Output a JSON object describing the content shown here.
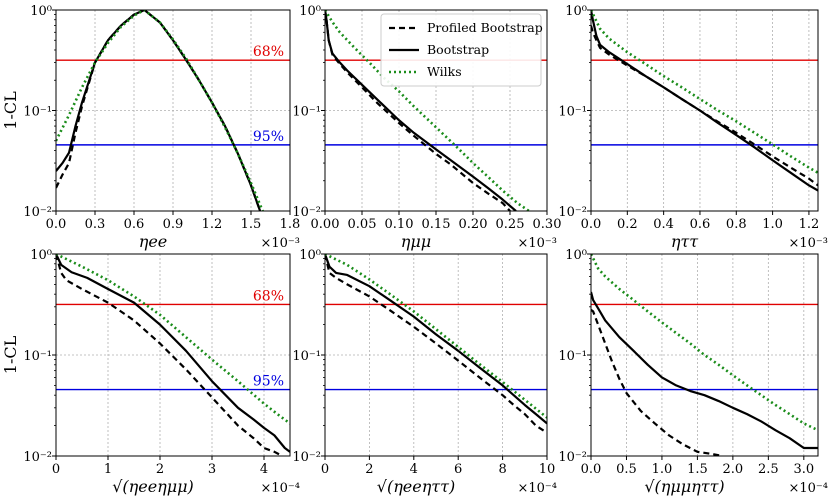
{
  "figure": {
    "ylabel": "1-CL",
    "legend": [
      {
        "label": "Profiled Bootstrap",
        "style": "dashed",
        "color": "#000000"
      },
      {
        "label": "Bootstrap",
        "style": "solid",
        "color": "#000000"
      },
      {
        "label": "Wilks",
        "style": "dotted",
        "color": "#1a8c1a"
      }
    ],
    "ref_lines": [
      {
        "label": "68%",
        "value": 0.317,
        "color": "#e00000"
      },
      {
        "label": "95%",
        "value": 0.0455,
        "color": "#0000e0"
      }
    ],
    "y_ticks": [
      "10⁻²",
      "10⁻¹",
      "10⁰"
    ],
    "grid": true,
    "yscale": "log",
    "ylim": [
      0.01,
      1.0
    ]
  },
  "chart_data": [
    {
      "type": "line",
      "xlabel": "ηee",
      "multiplier": "×10⁻³",
      "xlim": [
        0.0,
        1.8
      ],
      "xticks": [
        0.0,
        0.3,
        0.6,
        0.9,
        1.2,
        1.5,
        1.8
      ],
      "xtick_labels": [
        "0.0",
        "0.3",
        "0.6",
        "0.9",
        "1.2",
        "1.5",
        "1.8"
      ],
      "show_ref_labels": true,
      "series": [
        {
          "name": "Profiled Bootstrap",
          "x": [
            0.0,
            0.05,
            0.1,
            0.15,
            0.2,
            0.3,
            0.4,
            0.5,
            0.6,
            0.68,
            0.8,
            0.9,
            1.0,
            1.1,
            1.2,
            1.3,
            1.4,
            1.5,
            1.57
          ],
          "y": [
            0.017,
            0.023,
            0.03,
            0.06,
            0.11,
            0.3,
            0.5,
            0.7,
            0.9,
            1.0,
            0.75,
            0.5,
            0.32,
            0.2,
            0.12,
            0.07,
            0.037,
            0.018,
            0.01
          ]
        },
        {
          "name": "Bootstrap",
          "x": [
            0.0,
            0.05,
            0.1,
            0.15,
            0.2,
            0.3,
            0.4,
            0.5,
            0.6,
            0.68,
            0.8,
            0.9,
            1.0,
            1.1,
            1.2,
            1.3,
            1.4,
            1.5,
            1.57
          ],
          "y": [
            0.025,
            0.03,
            0.038,
            0.07,
            0.12,
            0.3,
            0.5,
            0.7,
            0.9,
            1.0,
            0.75,
            0.5,
            0.32,
            0.2,
            0.12,
            0.07,
            0.037,
            0.018,
            0.01
          ]
        },
        {
          "name": "Wilks",
          "x": [
            0.0,
            0.1,
            0.2,
            0.3,
            0.4,
            0.5,
            0.6,
            0.68,
            0.8,
            0.9,
            1.0,
            1.1,
            1.2,
            1.3,
            1.4,
            1.5,
            1.59
          ],
          "y": [
            0.05,
            0.09,
            0.17,
            0.3,
            0.47,
            0.68,
            0.88,
            1.0,
            0.75,
            0.51,
            0.33,
            0.2,
            0.12,
            0.068,
            0.037,
            0.019,
            0.01
          ]
        }
      ]
    },
    {
      "type": "line",
      "xlabel": "ημμ",
      "multiplier": "×10⁻³",
      "xlim": [
        0.0,
        0.3
      ],
      "xticks": [
        0.0,
        0.05,
        0.1,
        0.15,
        0.2,
        0.25,
        0.3
      ],
      "xtick_labels": [
        "0.00",
        "0.05",
        "0.10",
        "0.15",
        "0.20",
        "0.25",
        "0.30"
      ],
      "show_ref_labels": false,
      "series": [
        {
          "name": "Profiled Bootstrap",
          "x": [
            0.0,
            0.002,
            0.005,
            0.01,
            0.02,
            0.03,
            0.05,
            0.07,
            0.1,
            0.12,
            0.15,
            0.17,
            0.2,
            0.22,
            0.24,
            0.25
          ],
          "y": [
            1.0,
            0.8,
            0.5,
            0.36,
            0.29,
            0.24,
            0.17,
            0.12,
            0.075,
            0.056,
            0.037,
            0.029,
            0.019,
            0.015,
            0.012,
            0.01
          ]
        },
        {
          "name": "Bootstrap",
          "x": [
            0.0,
            0.002,
            0.005,
            0.01,
            0.02,
            0.03,
            0.05,
            0.07,
            0.1,
            0.12,
            0.15,
            0.17,
            0.2,
            0.22,
            0.24,
            0.258
          ],
          "y": [
            1.0,
            0.8,
            0.5,
            0.37,
            0.3,
            0.25,
            0.18,
            0.13,
            0.08,
            0.06,
            0.041,
            0.032,
            0.022,
            0.017,
            0.013,
            0.01
          ]
        },
        {
          "name": "Wilks",
          "x": [
            0.0,
            0.01,
            0.02,
            0.04,
            0.06,
            0.08,
            0.1,
            0.12,
            0.14,
            0.16,
            0.18,
            0.2,
            0.22,
            0.24,
            0.26,
            0.28
          ],
          "y": [
            1.0,
            0.76,
            0.6,
            0.42,
            0.3,
            0.21,
            0.155,
            0.11,
            0.08,
            0.058,
            0.042,
            0.03,
            0.022,
            0.016,
            0.012,
            0.0095
          ]
        }
      ]
    },
    {
      "type": "line",
      "xlabel": "ηττ",
      "multiplier": "×10⁻³",
      "xlim": [
        0.0,
        1.25
      ],
      "xticks": [
        0.0,
        0.2,
        0.4,
        0.6,
        0.8,
        1.0,
        1.2
      ],
      "xtick_labels": [
        "0.0",
        "0.2",
        "0.4",
        "0.6",
        "0.8",
        "1.0",
        "1.2"
      ],
      "show_ref_labels": false,
      "series": [
        {
          "name": "Profiled Bootstrap",
          "x": [
            0.0,
            0.01,
            0.03,
            0.05,
            0.1,
            0.2,
            0.3,
            0.4,
            0.5,
            0.6,
            0.7,
            0.8,
            0.9,
            1.0,
            1.1,
            1.2,
            1.25
          ],
          "y": [
            0.7,
            0.6,
            0.5,
            0.42,
            0.36,
            0.28,
            0.22,
            0.17,
            0.13,
            0.1,
            0.077,
            0.06,
            0.046,
            0.035,
            0.027,
            0.021,
            0.018
          ]
        },
        {
          "name": "Bootstrap",
          "x": [
            0.0,
            0.01,
            0.03,
            0.05,
            0.1,
            0.2,
            0.3,
            0.4,
            0.5,
            0.6,
            0.7,
            0.8,
            0.9,
            1.0,
            1.1,
            1.2,
            1.25
          ],
          "y": [
            1.0,
            0.8,
            0.55,
            0.45,
            0.38,
            0.29,
            0.22,
            0.17,
            0.13,
            0.1,
            0.075,
            0.057,
            0.043,
            0.032,
            0.024,
            0.018,
            0.016
          ]
        },
        {
          "name": "Wilks",
          "x": [
            0.0,
            0.05,
            0.1,
            0.2,
            0.3,
            0.4,
            0.5,
            0.6,
            0.7,
            0.8,
            0.9,
            1.0,
            1.1,
            1.2,
            1.25
          ],
          "y": [
            1.0,
            0.65,
            0.52,
            0.38,
            0.29,
            0.22,
            0.17,
            0.13,
            0.1,
            0.078,
            0.06,
            0.046,
            0.035,
            0.027,
            0.024
          ]
        }
      ]
    },
    {
      "type": "line",
      "xlabel": "√(ηeeημμ)",
      "multiplier": "×10⁻⁴",
      "xlim": [
        0.0,
        4.5
      ],
      "xticks": [
        0,
        1,
        2,
        3,
        4
      ],
      "xtick_labels": [
        "0",
        "1",
        "2",
        "3",
        "4"
      ],
      "show_ref_labels": true,
      "series": [
        {
          "name": "Profiled Bootstrap",
          "x": [
            0.0,
            0.1,
            0.2,
            0.5,
            1.0,
            1.5,
            2.0,
            2.5,
            3.0,
            3.5,
            3.8,
            4.0,
            4.2,
            4.35
          ],
          "y": [
            1.0,
            0.65,
            0.55,
            0.45,
            0.33,
            0.22,
            0.13,
            0.072,
            0.038,
            0.02,
            0.015,
            0.012,
            0.011,
            0.01
          ]
        },
        {
          "name": "Bootstrap",
          "x": [
            0.0,
            0.1,
            0.3,
            0.6,
            1.0,
            1.5,
            2.0,
            2.5,
            3.0,
            3.5,
            3.8,
            4.0,
            4.2,
            4.4,
            4.5
          ],
          "y": [
            1.0,
            0.78,
            0.66,
            0.58,
            0.45,
            0.33,
            0.2,
            0.11,
            0.055,
            0.03,
            0.023,
            0.019,
            0.016,
            0.012,
            0.011
          ]
        },
        {
          "name": "Wilks",
          "x": [
            0.0,
            0.5,
            1.0,
            1.5,
            2.0,
            2.5,
            3.0,
            3.5,
            4.0,
            4.3,
            4.5
          ],
          "y": [
            1.0,
            0.75,
            0.55,
            0.38,
            0.25,
            0.15,
            0.09,
            0.055,
            0.033,
            0.025,
            0.021
          ]
        }
      ]
    },
    {
      "type": "line",
      "xlabel": "√(ηeeηττ)",
      "multiplier": "×10⁻⁴",
      "xlim": [
        0.0,
        10.0
      ],
      "xticks": [
        0,
        2,
        4,
        6,
        8,
        10
      ],
      "xtick_labels": [
        "0",
        "2",
        "4",
        "6",
        "8",
        "10"
      ],
      "show_ref_labels": false,
      "series": [
        {
          "name": "Profiled Bootstrap",
          "x": [
            0.0,
            0.2,
            0.5,
            1.0,
            2.0,
            3.0,
            4.0,
            5.0,
            6.0,
            7.0,
            8.0,
            8.5,
            9.0,
            9.5,
            10.0
          ],
          "y": [
            1.0,
            0.65,
            0.58,
            0.5,
            0.38,
            0.27,
            0.19,
            0.13,
            0.088,
            0.059,
            0.04,
            0.032,
            0.026,
            0.02,
            0.017
          ]
        },
        {
          "name": "Bootstrap",
          "x": [
            0.0,
            0.2,
            0.5,
            1.0,
            2.0,
            3.0,
            4.0,
            5.0,
            6.0,
            7.0,
            8.0,
            8.5,
            9.0,
            9.5,
            10.0
          ],
          "y": [
            1.0,
            0.75,
            0.65,
            0.62,
            0.48,
            0.34,
            0.24,
            0.16,
            0.11,
            0.074,
            0.05,
            0.04,
            0.032,
            0.026,
            0.021
          ]
        },
        {
          "name": "Wilks",
          "x": [
            0.0,
            1.0,
            2.0,
            3.0,
            4.0,
            5.0,
            6.0,
            7.0,
            8.0,
            9.0,
            10.0
          ],
          "y": [
            1.0,
            0.78,
            0.56,
            0.39,
            0.27,
            0.18,
            0.12,
            0.08,
            0.054,
            0.036,
            0.024
          ]
        }
      ]
    },
    {
      "type": "line",
      "xlabel": "√(ημμηττ)",
      "multiplier": "×10⁻⁴",
      "xlim": [
        0.0,
        3.2
      ],
      "xticks": [
        0.0,
        0.5,
        1.0,
        1.5,
        2.0,
        2.5,
        3.0
      ],
      "xtick_labels": [
        "0.0",
        "0.5",
        "1.0",
        "1.5",
        "2.0",
        "2.5",
        "3.0"
      ],
      "show_ref_labels": false,
      "series": [
        {
          "name": "Profiled Bootstrap",
          "x": [
            0.0,
            0.03,
            0.1,
            0.2,
            0.3,
            0.4,
            0.5,
            0.7,
            0.9,
            1.1,
            1.3,
            1.5,
            1.7,
            1.85
          ],
          "y": [
            0.28,
            0.27,
            0.2,
            0.13,
            0.085,
            0.058,
            0.042,
            0.028,
            0.021,
            0.016,
            0.013,
            0.011,
            0.0105,
            0.01
          ]
        },
        {
          "name": "Bootstrap",
          "x": [
            0.0,
            0.03,
            0.1,
            0.2,
            0.4,
            0.6,
            0.8,
            1.0,
            1.2,
            1.4,
            1.6,
            1.8,
            2.0,
            2.2,
            2.4,
            2.6,
            2.8,
            3.0,
            3.2
          ],
          "y": [
            0.42,
            0.35,
            0.29,
            0.22,
            0.15,
            0.11,
            0.08,
            0.06,
            0.05,
            0.044,
            0.04,
            0.035,
            0.03,
            0.026,
            0.022,
            0.018,
            0.015,
            0.012,
            0.012
          ]
        },
        {
          "name": "Wilks",
          "x": [
            0.0,
            0.1,
            0.2,
            0.4,
            0.6,
            0.8,
            1.0,
            1.2,
            1.4,
            1.6,
            1.8,
            2.0,
            2.2,
            2.4,
            2.6,
            2.8,
            3.0,
            3.2
          ],
          "y": [
            1.0,
            0.72,
            0.6,
            0.45,
            0.35,
            0.27,
            0.21,
            0.165,
            0.13,
            0.1,
            0.08,
            0.063,
            0.05,
            0.04,
            0.032,
            0.026,
            0.021,
            0.018
          ]
        }
      ]
    }
  ]
}
